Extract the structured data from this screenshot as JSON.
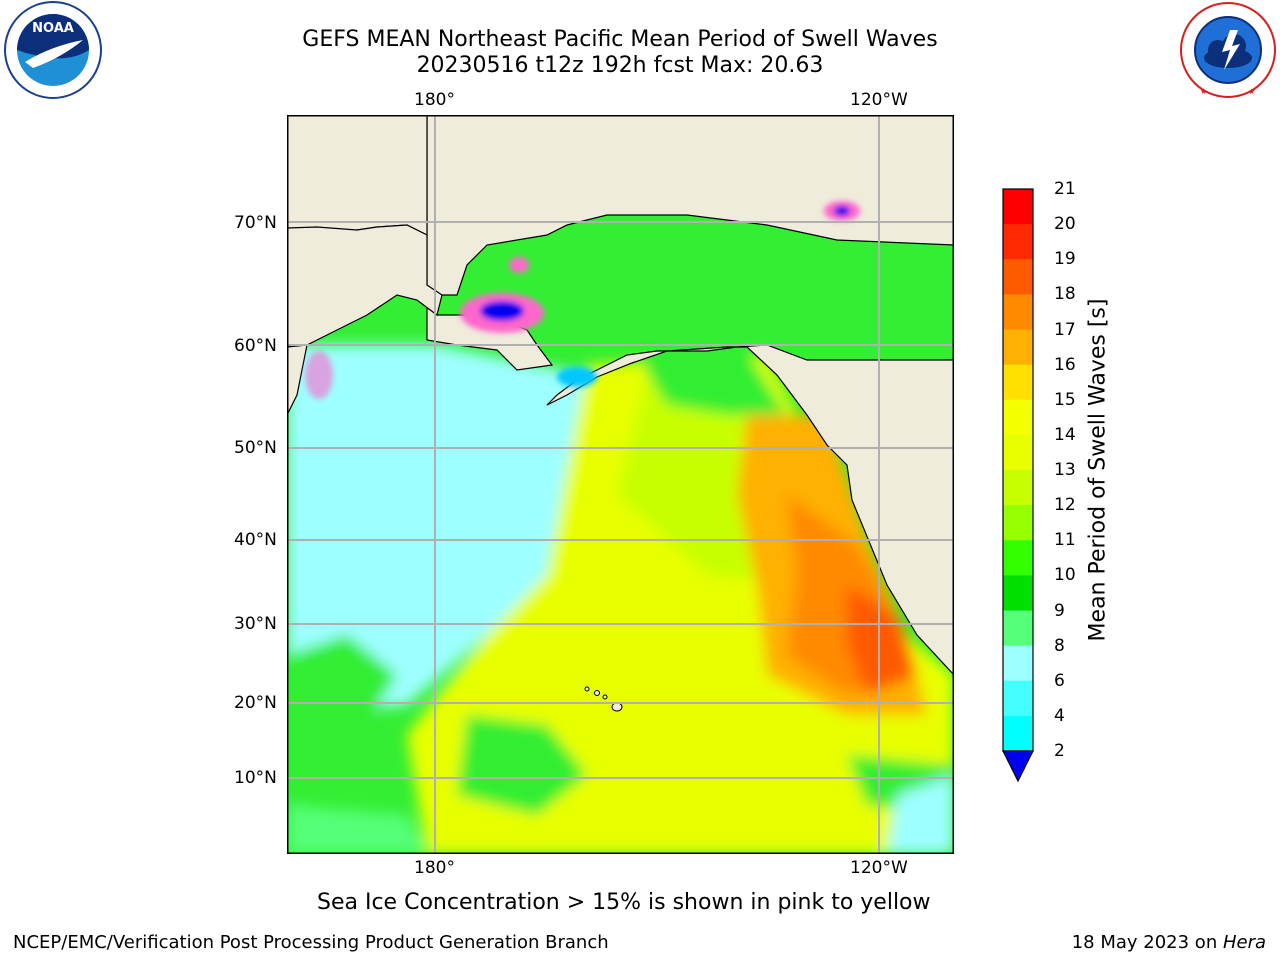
{
  "header": {
    "title_line1": "GEFS MEAN Northeast Pacific Mean Period of Swell Waves",
    "title_line2": "20230516 t12z 192h fcst   Max: 20.63"
  },
  "logos": {
    "noaa": {
      "text": "NOAA",
      "ring_text": "NATIONAL OCEANIC AND ATMOSPHERIC ADMINISTRATION · U.S. DEPARTMENT OF COMMERCE"
    },
    "nws": {
      "ring_text": "NATIONAL WEATHER SERVICE"
    }
  },
  "map": {
    "lon_top_labels": [
      "180°",
      "120°W"
    ],
    "lon_bottom_labels": [
      "180°",
      "120°W"
    ],
    "lat_labels": [
      "70°N",
      "60°N",
      "50°N",
      "40°N",
      "30°N",
      "20°N",
      "10°N"
    ],
    "colors": {
      "land": "#efecdc",
      "ocean_light": "#9effff",
      "gridline": "#b0b0b0"
    }
  },
  "colorbar": {
    "title": "Mean Period of Swell Waves [s]",
    "ticks": [
      "21",
      "20",
      "19",
      "18",
      "17",
      "16",
      "15",
      "14",
      "13",
      "12",
      "11",
      "10",
      "9",
      "8",
      "6",
      "4",
      "2"
    ],
    "colors_top_to_bottom": [
      "#ff0000",
      "#ff2a00",
      "#ff5a00",
      "#ff8a00",
      "#ffb000",
      "#ffe000",
      "#f4ff00",
      "#e8ff00",
      "#c8ff00",
      "#96ff00",
      "#33ff00",
      "#00e000",
      "#55ff77",
      "#9dffff",
      "#44ffff",
      "#00ffff",
      "#00c8ff",
      "#0077ff",
      "#0000ee"
    ]
  },
  "caption": "Sea Ice Concentration > 15% is shown in pink to yellow",
  "footer": {
    "left": "NCEP/EMC/Verification Post Processing Product Generation Branch",
    "right_prefix": "18 May 2023 on ",
    "right_machine": "Hera"
  }
}
